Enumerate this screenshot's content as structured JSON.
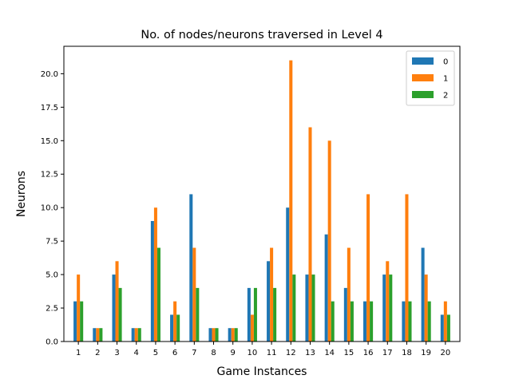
{
  "chart_data": {
    "type": "bar",
    "title": "No. of nodes/neurons traversed in Level 4",
    "xlabel": "Game Instances",
    "ylabel": "Neurons",
    "categories": [
      "1",
      "2",
      "3",
      "4",
      "5",
      "6",
      "7",
      "8",
      "9",
      "10",
      "11",
      "12",
      "13",
      "14",
      "15",
      "16",
      "17",
      "18",
      "19",
      "20"
    ],
    "series": [
      {
        "name": "0",
        "color": "#1f77b4",
        "values": [
          3,
          1,
          5,
          1,
          9,
          2,
          11,
          1,
          1,
          4,
          6,
          10,
          5,
          8,
          4,
          3,
          5,
          3,
          7,
          2
        ]
      },
      {
        "name": "1",
        "color": "#ff7f0e",
        "values": [
          5,
          1,
          6,
          1,
          10,
          3,
          7,
          1,
          1,
          2,
          7,
          21,
          16,
          15,
          7,
          11,
          6,
          11,
          5,
          3
        ]
      },
      {
        "name": "2",
        "color": "#2ca02c",
        "values": [
          3,
          1,
          4,
          1,
          7,
          2,
          4,
          1,
          1,
          4,
          4,
          5,
          5,
          3,
          3,
          3,
          5,
          3,
          3,
          2
        ]
      }
    ],
    "ylim": [
      0,
      22.05
    ],
    "yticks": [
      "0.0",
      "2.5",
      "5.0",
      "7.5",
      "10.0",
      "12.5",
      "15.0",
      "17.5",
      "20.0"
    ],
    "grid": false,
    "legend_position": "top-right"
  }
}
